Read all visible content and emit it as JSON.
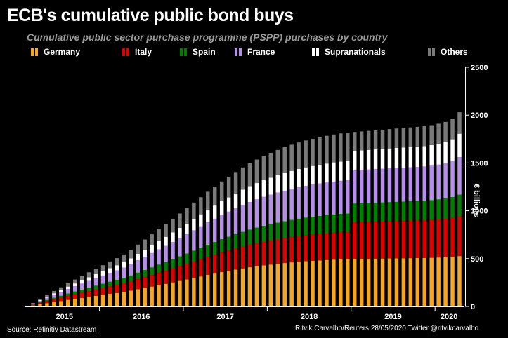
{
  "chart_data": {
    "type": "bar",
    "stacked": true,
    "title": "ECB's cumulative public bond buys",
    "subtitle": "Cumulative public sector purchase programme (PSPP) purchases by country",
    "ylabel": "€ billions",
    "ylim": [
      0,
      2500
    ],
    "yticks": [
      0,
      500,
      1000,
      1500,
      2000,
      2500
    ],
    "xticks": [
      "2015",
      "2016",
      "2017",
      "2018",
      "2019",
      "2020"
    ],
    "legend_position": "top",
    "grid": false,
    "x": [
      "2015-03",
      "2015-04",
      "2015-05",
      "2015-06",
      "2015-07",
      "2015-08",
      "2015-09",
      "2015-10",
      "2015-11",
      "2015-12",
      "2016-01",
      "2016-02",
      "2016-03",
      "2016-04",
      "2016-05",
      "2016-06",
      "2016-07",
      "2016-08",
      "2016-09",
      "2016-10",
      "2016-11",
      "2016-12",
      "2017-01",
      "2017-02",
      "2017-03",
      "2017-04",
      "2017-05",
      "2017-06",
      "2017-07",
      "2017-08",
      "2017-09",
      "2017-10",
      "2017-11",
      "2017-12",
      "2018-01",
      "2018-02",
      "2018-03",
      "2018-04",
      "2018-05",
      "2018-06",
      "2018-07",
      "2018-08",
      "2018-09",
      "2018-10",
      "2018-11",
      "2018-12",
      "2019-01",
      "2019-02",
      "2019-03",
      "2019-04",
      "2019-05",
      "2019-06",
      "2019-07",
      "2019-08",
      "2019-09",
      "2019-10",
      "2019-11",
      "2019-12",
      "2020-01",
      "2020-02",
      "2020-03",
      "2020-04"
    ],
    "series": [
      {
        "name": "Germany",
        "color": "#f5a623",
        "values": [
          10,
          22,
          34,
          46,
          57,
          69,
          80,
          90,
          101,
          111,
          121,
          132,
          141,
          152,
          165,
          180,
          194,
          208,
          223,
          237,
          252,
          267,
          282,
          298,
          314,
          330,
          344,
          359,
          372,
          385,
          398,
          410,
          420,
          430,
          438,
          446,
          454,
          461,
          467,
          473,
          478,
          482,
          486,
          490,
          493,
          495,
          497,
          498,
          499,
          500,
          501,
          502,
          503,
          504,
          505,
          506,
          507,
          509,
          512,
          515,
          520,
          527
        ]
      },
      {
        "name": "Italy",
        "color": "#e00000",
        "values": [
          6,
          13,
          20,
          27,
          33,
          40,
          46,
          52,
          58,
          64,
          70,
          76,
          82,
          88,
          95,
          104,
          112,
          120,
          128,
          136,
          144,
          153,
          161,
          170,
          179,
          188,
          196,
          204,
          212,
          219,
          226,
          233,
          239,
          244,
          249,
          254,
          258,
          262,
          266,
          269,
          272,
          274,
          276,
          278,
          280,
          281,
          382,
          383,
          384,
          385,
          386,
          387,
          388,
          389,
          390,
          391,
          392,
          394,
          397,
          400,
          405,
          413
        ]
      },
      {
        "name": "Spain",
        "color": "#008000",
        "values": [
          4,
          9,
          13,
          17,
          21,
          26,
          30,
          34,
          38,
          42,
          46,
          50,
          54,
          58,
          63,
          69,
          75,
          80,
          86,
          91,
          97,
          103,
          109,
          115,
          121,
          127,
          133,
          139,
          144,
          150,
          155,
          160,
          164,
          168,
          172,
          175,
          178,
          181,
          184,
          186,
          188,
          190,
          191,
          193,
          194,
          195,
          196,
          197,
          198,
          199,
          200,
          201,
          202,
          203,
          204,
          205,
          206,
          208,
          210,
          213,
          218,
          228
        ]
      },
      {
        "name": "France",
        "color": "#b68fe8",
        "values": [
          7,
          15,
          23,
          32,
          40,
          48,
          56,
          63,
          71,
          79,
          86,
          94,
          101,
          109,
          118,
          129,
          139,
          150,
          160,
          170,
          181,
          191,
          202,
          213,
          223,
          234,
          244,
          254,
          263,
          272,
          281,
          289,
          296,
          303,
          309,
          315,
          320,
          325,
          329,
          333,
          336,
          339,
          342,
          344,
          346,
          347,
          348,
          349,
          350,
          351,
          352,
          353,
          354,
          355,
          356,
          357,
          358,
          360,
          363,
          367,
          375,
          393
        ]
      },
      {
        "name": "Supranationals",
        "color": "#ffffff",
        "values": [
          4,
          8,
          12,
          16,
          20,
          25,
          29,
          33,
          37,
          41,
          45,
          49,
          53,
          57,
          62,
          69,
          75,
          82,
          88,
          94,
          101,
          107,
          113,
          120,
          126,
          132,
          138,
          144,
          150,
          155,
          161,
          166,
          171,
          175,
          179,
          182,
          186,
          188,
          191,
          193,
          195,
          197,
          199,
          201,
          202,
          203,
          204,
          205,
          206,
          207,
          208,
          209,
          210,
          211,
          212,
          213,
          214,
          216,
          219,
          223,
          230,
          245
        ]
      },
      {
        "name": "Others",
        "color": "#7a7a7a",
        "values": [
          6,
          12,
          18,
          24,
          29,
          35,
          41,
          46,
          52,
          58,
          63,
          69,
          74,
          80,
          87,
          96,
          105,
          114,
          123,
          132,
          142,
          151,
          160,
          170,
          179,
          188,
          198,
          207,
          215,
          224,
          232,
          240,
          246,
          252,
          259,
          264,
          269,
          273,
          277,
          281,
          284,
          287,
          290,
          292,
          294,
          296,
          197,
          198,
          199,
          200,
          201,
          202,
          203,
          204,
          205,
          206,
          207,
          208,
          209,
          211,
          215,
          224
        ]
      }
    ]
  },
  "footer": {
    "source": "Source: Refinitiv Datastream",
    "credit": "Ritvik Carvalho/Reuters 28/05/2020 Twitter @ritvikcarvalho"
  }
}
